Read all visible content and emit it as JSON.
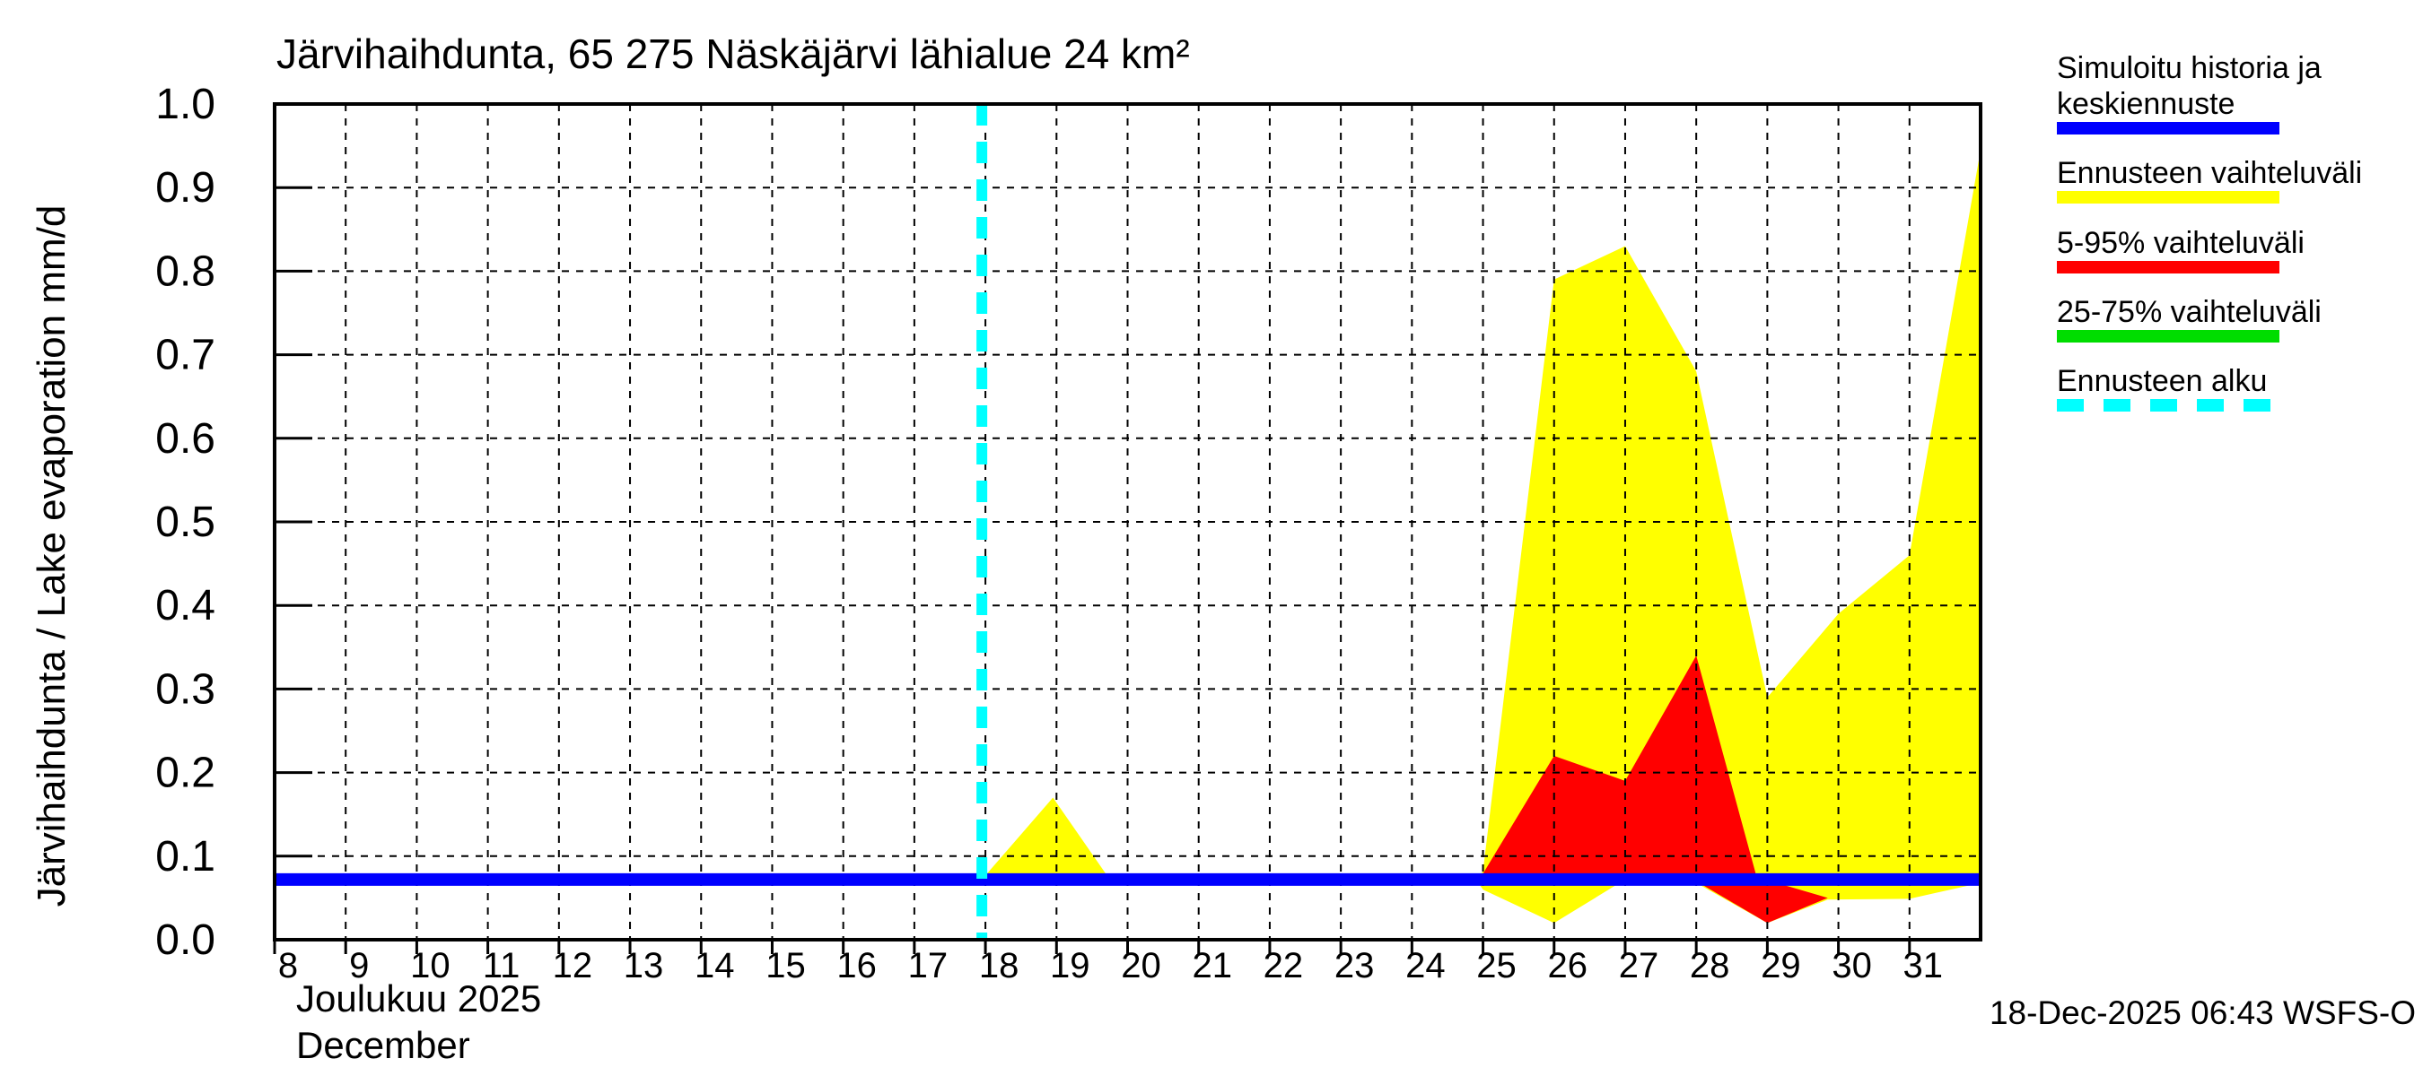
{
  "title": "Järvihaihdunta, 65 275 Näskäjärvi lähialue 24 km²",
  "y_axis_label": "Järvihaihdunta / Lake evaporation  mm/d",
  "x_axis": {
    "month_fi": "Joulukuu  2025",
    "month_en": "December"
  },
  "footer": {
    "timestamp": "18-Dec-2025 06:43 WSFS-O"
  },
  "colors": {
    "background": "#ffffff",
    "frame": "#000000",
    "grid": "#000000",
    "mean_line": "#0000ff",
    "forecast_range": "#ffff00",
    "range_5_95": "#ff0000",
    "range_25_75": "#00dd00",
    "forecast_start": "#00ffff"
  },
  "legend": [
    {
      "label_lines": [
        "Simuloitu historia ja",
        "keskiennuste"
      ],
      "color": "#0000ff",
      "dashed": false
    },
    {
      "label_lines": [
        "Ennusteen vaihteluväli"
      ],
      "color": "#ffff00",
      "dashed": false
    },
    {
      "label_lines": [
        "5-95% vaihteluväli"
      ],
      "color": "#ff0000",
      "dashed": false
    },
    {
      "label_lines": [
        "25-75% vaihteluväli"
      ],
      "color": "#00dd00",
      "dashed": false
    },
    {
      "label_lines": [
        "Ennusteen alku"
      ],
      "color": "#00ffff",
      "dashed": true
    }
  ],
  "chart_data": {
    "type": "area",
    "title": "Järvihaihdunta, 65 275 Näskäjärvi lähialue 24 km²",
    "xlabel": "Joulukuu 2025 / December",
    "ylabel": "Järvihaihdunta / Lake evaporation mm/d",
    "x_unit": "day of month",
    "x_range": [
      8,
      32
    ],
    "y_range": [
      0,
      1
    ],
    "x_ticks": [
      8,
      9,
      10,
      11,
      12,
      13,
      14,
      15,
      16,
      17,
      18,
      19,
      20,
      21,
      22,
      23,
      24,
      25,
      26,
      27,
      28,
      29,
      30,
      31
    ],
    "y_tick_values": [
      0,
      0.1,
      0.2,
      0.3,
      0.4,
      0.5,
      0.6,
      0.7,
      0.8,
      0.9,
      1.0
    ],
    "y_tick_labels": [
      "0.0",
      "0.1",
      "0.2",
      "0.3",
      "0.4",
      "0.5",
      "0.6",
      "0.7",
      "0.8",
      "0.9",
      "1.0"
    ],
    "grid": true,
    "legend_position": "outside-right",
    "forecast_start_x": 17.95,
    "series": [
      {
        "name": "Simuloitu historia ja keskiennuste",
        "type": "line",
        "color": "#0000ff",
        "points": [
          [
            8,
            0.072
          ],
          [
            32,
            0.072
          ]
        ]
      },
      {
        "name": "Ennusteen vaihteluväli",
        "type": "band",
        "color": "#ffff00",
        "upper": [
          [
            17.95,
            0.072
          ],
          [
            18.95,
            0.17
          ],
          [
            19.75,
            0.072
          ],
          [
            24.9,
            0.072
          ],
          [
            25,
            0.082
          ],
          [
            26,
            0.79
          ],
          [
            27,
            0.83
          ],
          [
            28,
            0.68
          ],
          [
            29,
            0.29
          ],
          [
            30,
            0.39
          ],
          [
            31,
            0.46
          ],
          [
            32,
            0.945
          ]
        ],
        "lower": [
          [
            17.95,
            0.072
          ],
          [
            19.75,
            0.072
          ],
          [
            24.9,
            0.072
          ],
          [
            25,
            0.06
          ],
          [
            26,
            0.02
          ],
          [
            27,
            0.072
          ],
          [
            28,
            0.068
          ],
          [
            29,
            0.02
          ],
          [
            29.85,
            0.048
          ],
          [
            31,
            0.049
          ],
          [
            32,
            0.068
          ]
        ]
      },
      {
        "name": "5-95% vaihteluväli",
        "type": "band",
        "color": "#ff0000",
        "upper": [
          [
            24.95,
            0.072
          ],
          [
            26,
            0.22
          ],
          [
            27,
            0.19
          ],
          [
            28,
            0.34
          ],
          [
            28.85,
            0.075
          ],
          [
            29.85,
            0.05
          ]
        ],
        "lower": [
          [
            24.95,
            0.072
          ],
          [
            26,
            0.07
          ],
          [
            27,
            0.068
          ],
          [
            28,
            0.07
          ],
          [
            29,
            0.02
          ],
          [
            29.85,
            0.05
          ]
        ]
      },
      {
        "name": "25-75% vaihteluväli",
        "type": "band",
        "color": "#00dd00",
        "upper": [
          [
            17.95,
            0.074
          ],
          [
            32,
            0.074
          ]
        ],
        "lower": [
          [
            17.95,
            0.068
          ],
          [
            32,
            0.068
          ]
        ],
        "note": "hidden beneath mean forecast line"
      }
    ]
  }
}
